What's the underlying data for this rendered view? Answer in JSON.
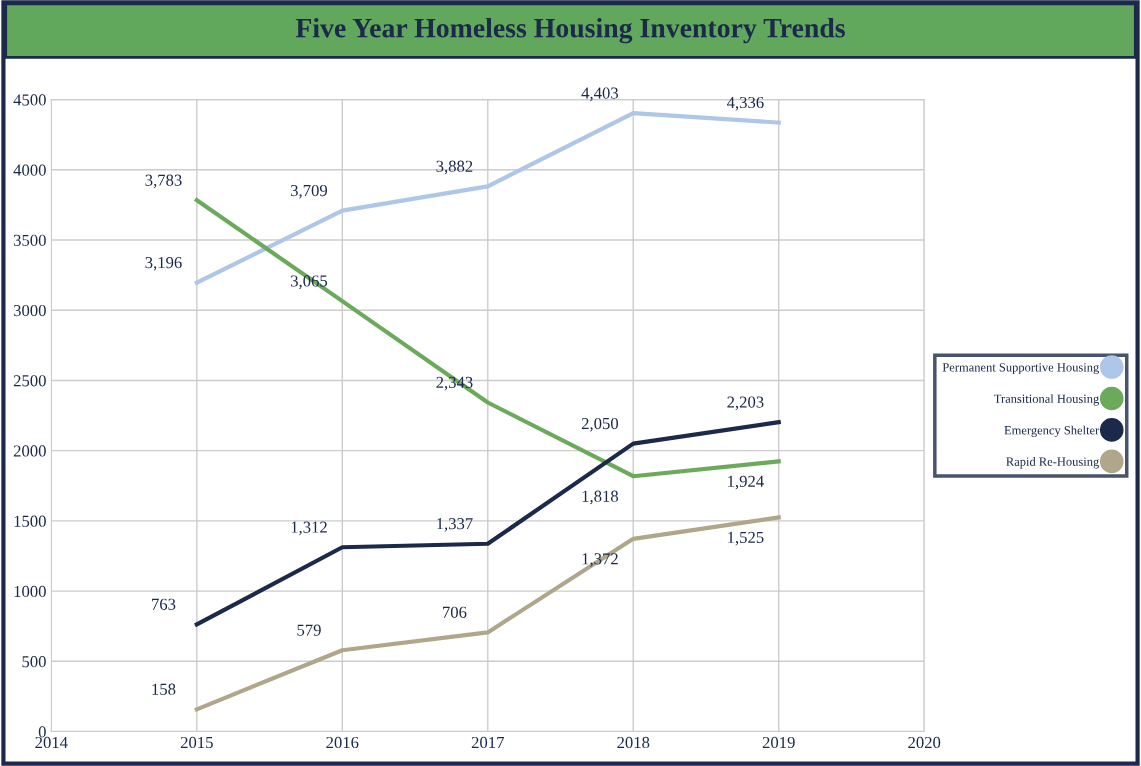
{
  "chart_data": {
    "type": "line",
    "title": "Five Year Homeless Housing Inventory Trends",
    "x": [
      2015,
      2016,
      2017,
      2018,
      2019
    ],
    "series": [
      {
        "name": "Permanent Supportive Housing",
        "color": "#aec6e8",
        "values": [
          3196,
          3709,
          3882,
          4403,
          4336
        ],
        "value_labels": [
          "3,196",
          "3,709",
          "3,882",
          "4,403",
          "4,336"
        ]
      },
      {
        "name": "Transitional Housing",
        "color": "#6aaa5a",
        "values": [
          3783,
          3065,
          2343,
          1818,
          1924
        ],
        "value_labels": [
          "3,783",
          "3,065",
          "2,343",
          "1,818",
          "1,924"
        ]
      },
      {
        "name": "Emergency Shelter",
        "color": "#1b2a4a",
        "values": [
          763,
          1312,
          1337,
          2050,
          2203
        ],
        "value_labels": [
          "763",
          "1,312",
          "1,337",
          "2,050",
          "2,203"
        ]
      },
      {
        "name": "Rapid Re-Housing",
        "color": "#b0a68a",
        "values": [
          158,
          579,
          706,
          1372,
          1525
        ],
        "value_labels": [
          "158",
          "579",
          "706",
          "1,372",
          "1,525"
        ]
      }
    ],
    "xlim": [
      2014,
      2020
    ],
    "xticks": [
      2014,
      2015,
      2016,
      2017,
      2018,
      2019,
      2020
    ],
    "ylim": [
      0,
      4500
    ],
    "yticks": [
      0,
      500,
      1000,
      1500,
      2000,
      2500,
      3000,
      3500,
      4000,
      4500
    ],
    "grid": true,
    "legend": "right",
    "line_style": "solid"
  }
}
